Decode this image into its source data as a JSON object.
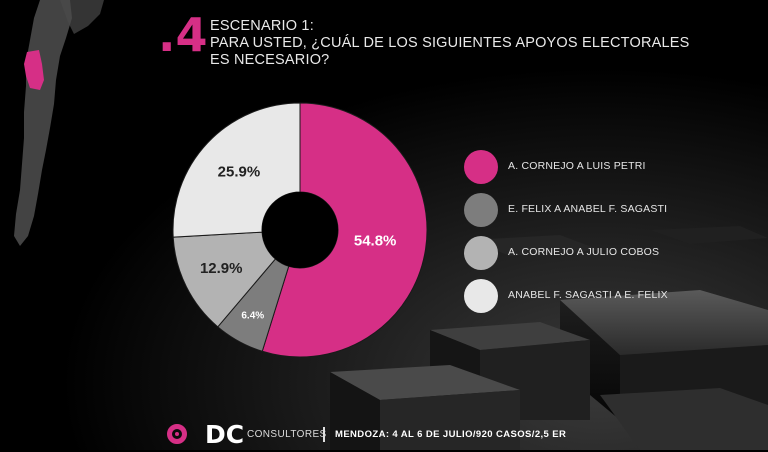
{
  "header": {
    "number": ".4",
    "lines": [
      "ESCENARIO 1:",
      "PARA USTED, ¿CUÁL DE LOS SIGUIENTES APOYOS ELECTORALES",
      "ES NECESARIO?"
    ]
  },
  "chart_data": {
    "type": "pie",
    "donut": true,
    "categories": [
      "A. CORNEJO A LUIS PETRI",
      "E. FELIX A ANABEL F. SAGASTI",
      "A. CORNEJO A JULIO COBOS",
      "ANABEL F. SAGASTI A E. FELIX"
    ],
    "values": [
      54.8,
      6.4,
      12.9,
      25.9
    ],
    "value_labels": [
      "54.8%",
      "6.4%",
      "12.9%",
      "25.9%"
    ],
    "colors": [
      "#d62f86",
      "#7d7d7d",
      "#b3b3b3",
      "#e8e8e8"
    ],
    "label_colors": [
      "#ffffff",
      "#ffffff",
      "#222222",
      "#222222"
    ],
    "legend_position": "right"
  },
  "legend": {
    "items": [
      "A. CORNEJO A LUIS PETRI",
      "E. FELIX A ANABEL F. SAGASTI",
      "A. CORNEJO A JULIO COBOS",
      "ANABEL F. SAGASTI A E. FELIX"
    ]
  },
  "footer": {
    "brand": "DC",
    "brand_sub": "CONSULTORES",
    "note": "MENDOZA: 4 AL 6 DE JULIO/920 CASOS/2,5 ER"
  },
  "colors": {
    "accent": "#d62f86",
    "background": "#000000"
  }
}
